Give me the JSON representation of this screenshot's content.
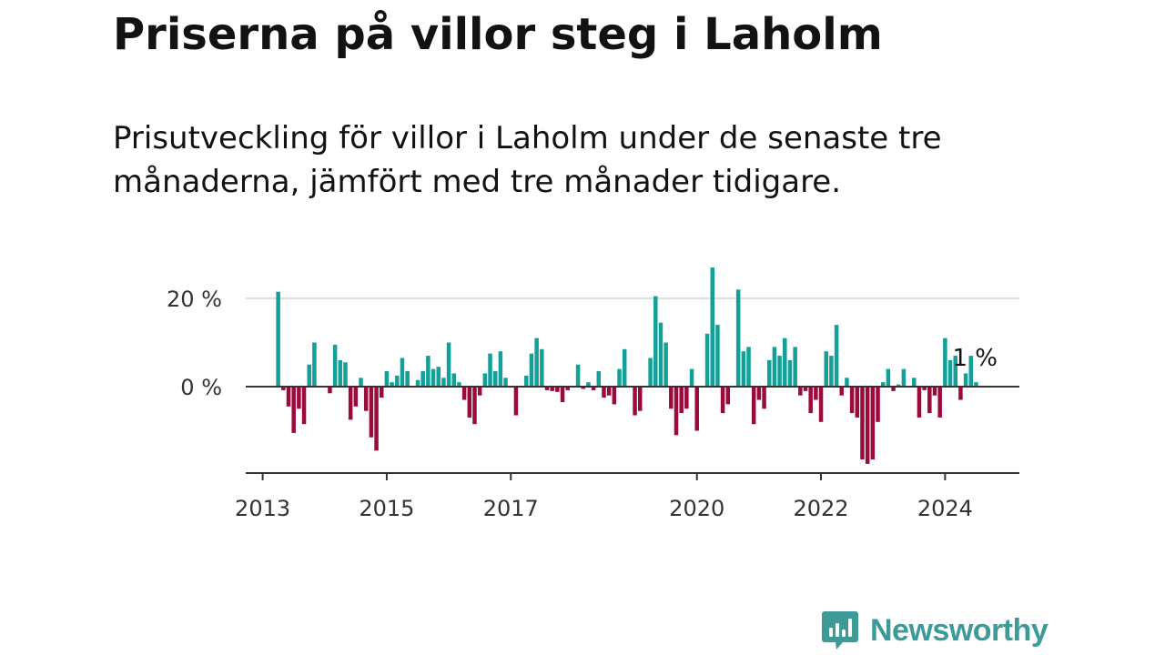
{
  "title": "Priserna på villor steg i Laholm",
  "subtitle": "Prisutveckling för villor i Laholm under de senaste tre månaderna, jämfört med tre månader tidigare.",
  "brand": {
    "name": "Newsworthy",
    "icon": "newsworthy-logo-icon",
    "color": "#3e9a97"
  },
  "colors": {
    "positive": "#12a098",
    "negative": "#9b0a3c",
    "gridline": "#dddddd",
    "axis": "#333333"
  },
  "chart_data": {
    "type": "bar",
    "title": "Priserna på villor steg i Laholm",
    "xlabel": "",
    "ylabel": "",
    "unit": "%",
    "ylim": [
      -19.5,
      28
    ],
    "y_ticks": [
      {
        "value": 0,
        "label": "0 %"
      },
      {
        "value": 20,
        "label": "20 %"
      }
    ],
    "x_range": [
      "2012-10",
      "2025-02"
    ],
    "x_ticks": [
      {
        "date": "2013-01",
        "label": "2013"
      },
      {
        "date": "2015-01",
        "label": "2015"
      },
      {
        "date": "2017-01",
        "label": "2017"
      },
      {
        "date": "2020-01",
        "label": "2020"
      },
      {
        "date": "2022-01",
        "label": "2022"
      },
      {
        "date": "2024-01",
        "label": "2024"
      }
    ],
    "grid": true,
    "end_label": "1 %",
    "positive_color": "#12a098",
    "negative_color": "#9b0a3c",
    "series": [
      {
        "values": [
          {
            "date": "2013-04",
            "value": 21.5
          },
          {
            "date": "2013-05",
            "value": -0.8
          },
          {
            "date": "2013-06",
            "value": -4.5
          },
          {
            "date": "2013-07",
            "value": -10.5
          },
          {
            "date": "2013-08",
            "value": -5.0
          },
          {
            "date": "2013-09",
            "value": -8.5
          },
          {
            "date": "2013-10",
            "value": 5.0
          },
          {
            "date": "2013-11",
            "value": 10.0
          },
          {
            "date": "2014-02",
            "value": -1.5
          },
          {
            "date": "2014-03",
            "value": 9.5
          },
          {
            "date": "2014-04",
            "value": 6.0
          },
          {
            "date": "2014-05",
            "value": 5.5
          },
          {
            "date": "2014-06",
            "value": -7.5
          },
          {
            "date": "2014-07",
            "value": -4.5
          },
          {
            "date": "2014-08",
            "value": 2.0
          },
          {
            "date": "2014-09",
            "value": -5.5
          },
          {
            "date": "2014-10",
            "value": -11.5
          },
          {
            "date": "2014-11",
            "value": -14.5
          },
          {
            "date": "2014-12",
            "value": -2.5
          },
          {
            "date": "2015-01",
            "value": 3.5
          },
          {
            "date": "2015-02",
            "value": 1.0
          },
          {
            "date": "2015-03",
            "value": 2.5
          },
          {
            "date": "2015-04",
            "value": 6.5
          },
          {
            "date": "2015-05",
            "value": 3.5
          },
          {
            "date": "2015-07",
            "value": 1.5
          },
          {
            "date": "2015-08",
            "value": 3.5
          },
          {
            "date": "2015-09",
            "value": 7.0
          },
          {
            "date": "2015-10",
            "value": 4.0
          },
          {
            "date": "2015-11",
            "value": 4.5
          },
          {
            "date": "2015-12",
            "value": 2.0
          },
          {
            "date": "2016-01",
            "value": 10.0
          },
          {
            "date": "2016-02",
            "value": 3.0
          },
          {
            "date": "2016-03",
            "value": 1.0
          },
          {
            "date": "2016-04",
            "value": -3.0
          },
          {
            "date": "2016-05",
            "value": -7.0
          },
          {
            "date": "2016-06",
            "value": -8.5
          },
          {
            "date": "2016-07",
            "value": -2.0
          },
          {
            "date": "2016-08",
            "value": 3.0
          },
          {
            "date": "2016-09",
            "value": 7.5
          },
          {
            "date": "2016-10",
            "value": 3.5
          },
          {
            "date": "2016-11",
            "value": 8.0
          },
          {
            "date": "2016-12",
            "value": 2.0
          },
          {
            "date": "2017-02",
            "value": -6.5
          },
          {
            "date": "2017-04",
            "value": 2.5
          },
          {
            "date": "2017-05",
            "value": 7.5
          },
          {
            "date": "2017-06",
            "value": 11.0
          },
          {
            "date": "2017-07",
            "value": 8.5
          },
          {
            "date": "2017-08",
            "value": -0.8
          },
          {
            "date": "2017-09",
            "value": -1.0
          },
          {
            "date": "2017-10",
            "value": -1.2
          },
          {
            "date": "2017-11",
            "value": -3.5
          },
          {
            "date": "2017-12",
            "value": -0.8
          },
          {
            "date": "2018-02",
            "value": 5.0
          },
          {
            "date": "2018-03",
            "value": -0.5
          },
          {
            "date": "2018-04",
            "value": 1.0
          },
          {
            "date": "2018-05",
            "value": -0.8
          },
          {
            "date": "2018-06",
            "value": 3.5
          },
          {
            "date": "2018-07",
            "value": -2.5
          },
          {
            "date": "2018-08",
            "value": -2.0
          },
          {
            "date": "2018-09",
            "value": -4.0
          },
          {
            "date": "2018-10",
            "value": 4.0
          },
          {
            "date": "2018-11",
            "value": 8.5
          },
          {
            "date": "2019-01",
            "value": -6.5
          },
          {
            "date": "2019-02",
            "value": -5.5
          },
          {
            "date": "2019-04",
            "value": 6.5
          },
          {
            "date": "2019-05",
            "value": 20.5
          },
          {
            "date": "2019-06",
            "value": 14.5
          },
          {
            "date": "2019-07",
            "value": 10.0
          },
          {
            "date": "2019-08",
            "value": -5.0
          },
          {
            "date": "2019-09",
            "value": -11.0
          },
          {
            "date": "2019-10",
            "value": -6.0
          },
          {
            "date": "2019-11",
            "value": -5.0
          },
          {
            "date": "2019-12",
            "value": 4.0
          },
          {
            "date": "2020-01",
            "value": -10.0
          },
          {
            "date": "2020-03",
            "value": 12.0
          },
          {
            "date": "2020-04",
            "value": 27.0
          },
          {
            "date": "2020-05",
            "value": 14.0
          },
          {
            "date": "2020-06",
            "value": -6.0
          },
          {
            "date": "2020-07",
            "value": -4.0
          },
          {
            "date": "2020-09",
            "value": 22.0
          },
          {
            "date": "2020-10",
            "value": 8.0
          },
          {
            "date": "2020-11",
            "value": 9.0
          },
          {
            "date": "2020-12",
            "value": -8.5
          },
          {
            "date": "2021-01",
            "value": -3.0
          },
          {
            "date": "2021-02",
            "value": -5.0
          },
          {
            "date": "2021-03",
            "value": 6.0
          },
          {
            "date": "2021-04",
            "value": 9.0
          },
          {
            "date": "2021-05",
            "value": 7.0
          },
          {
            "date": "2021-06",
            "value": 11.0
          },
          {
            "date": "2021-07",
            "value": 6.0
          },
          {
            "date": "2021-08",
            "value": 9.0
          },
          {
            "date": "2021-09",
            "value": -2.0
          },
          {
            "date": "2021-10",
            "value": -1.0
          },
          {
            "date": "2021-11",
            "value": -6.0
          },
          {
            "date": "2021-12",
            "value": -3.0
          },
          {
            "date": "2022-01",
            "value": -8.0
          },
          {
            "date": "2022-02",
            "value": 8.0
          },
          {
            "date": "2022-03",
            "value": 7.0
          },
          {
            "date": "2022-04",
            "value": 14.0
          },
          {
            "date": "2022-05",
            "value": -2.0
          },
          {
            "date": "2022-06",
            "value": 2.0
          },
          {
            "date": "2022-07",
            "value": -6.0
          },
          {
            "date": "2022-08",
            "value": -7.0
          },
          {
            "date": "2022-09",
            "value": -16.5
          },
          {
            "date": "2022-10",
            "value": -17.5
          },
          {
            "date": "2022-11",
            "value": -16.5
          },
          {
            "date": "2022-12",
            "value": -8.0
          },
          {
            "date": "2023-01",
            "value": 1.0
          },
          {
            "date": "2023-02",
            "value": 4.0
          },
          {
            "date": "2023-03",
            "value": -1.0
          },
          {
            "date": "2023-04",
            "value": 0.5
          },
          {
            "date": "2023-05",
            "value": 4.0
          },
          {
            "date": "2023-07",
            "value": 2.0
          },
          {
            "date": "2023-08",
            "value": -7.0
          },
          {
            "date": "2023-09",
            "value": -0.8
          },
          {
            "date": "2023-10",
            "value": -6.0
          },
          {
            "date": "2023-11",
            "value": -2.0
          },
          {
            "date": "2023-12",
            "value": -7.0
          },
          {
            "date": "2024-01",
            "value": 11.0
          },
          {
            "date": "2024-02",
            "value": 6.0
          },
          {
            "date": "2024-03",
            "value": 7.0
          },
          {
            "date": "2024-04",
            "value": -3.0
          },
          {
            "date": "2024-05",
            "value": 3.0
          },
          {
            "date": "2024-06",
            "value": 7.0
          },
          {
            "date": "2024-07",
            "value": 1.0
          }
        ]
      }
    ]
  }
}
